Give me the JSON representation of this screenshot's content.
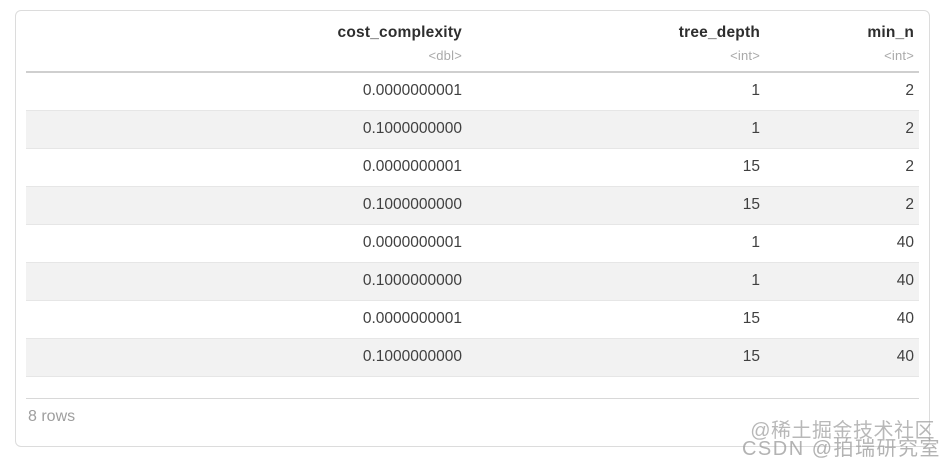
{
  "table": {
    "columns": [
      {
        "name": "cost_complexity",
        "type": "<dbl>"
      },
      {
        "name": "tree_depth",
        "type": "<int>"
      },
      {
        "name": "min_n",
        "type": "<int>"
      }
    ],
    "rows": [
      [
        "0.0000000001",
        "1",
        "2"
      ],
      [
        "0.1000000000",
        "1",
        "2"
      ],
      [
        "0.0000000001",
        "15",
        "2"
      ],
      [
        "0.1000000000",
        "15",
        "2"
      ],
      [
        "0.0000000001",
        "1",
        "40"
      ],
      [
        "0.1000000000",
        "1",
        "40"
      ],
      [
        "0.0000000001",
        "15",
        "40"
      ],
      [
        "0.1000000000",
        "15",
        "40"
      ]
    ],
    "footer_label": "8 rows"
  },
  "watermark": {
    "line1": "@稀土掘金技术社区",
    "line2": "CSDN @拍瑞研究室"
  },
  "colors": {
    "card_border": "#dcdcdc",
    "header_text": "#2e2e2e",
    "type_text": "#a9a9a9",
    "cell_text": "#404040",
    "row_stripe": "#f2f2f2",
    "row_border": "#e6e6e6",
    "header_border": "#cfcfcf",
    "footer_text": "#9e9e9e",
    "watermark_text": "#9e9e9e"
  }
}
